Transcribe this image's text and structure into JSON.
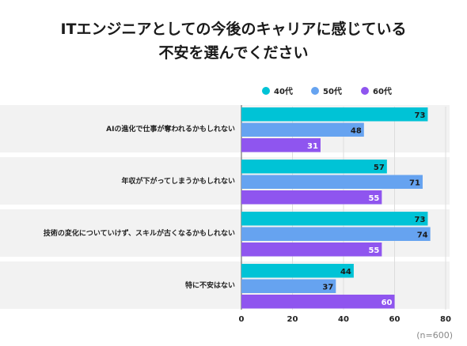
{
  "chart_data": {
    "type": "bar",
    "orientation": "horizontal",
    "title_lines": [
      "ITエンジニアとしての今後のキャリアに感じている",
      "不安を選んでください"
    ],
    "categories": [
      "AIの進化で仕事が奪われるかもしれない",
      "年収が下がってしまうかもしれない",
      "技術の変化についていけず、スキルが古くなるかもしれない",
      "特に不安はない"
    ],
    "series": [
      {
        "name": "40代",
        "color": "#00c3d6",
        "values": [
          73,
          57,
          73,
          44
        ]
      },
      {
        "name": "50代",
        "color": "#66a3f0",
        "values": [
          48,
          71,
          74,
          37
        ]
      },
      {
        "name": "60代",
        "color": "#8f55ef",
        "values": [
          31,
          55,
          55,
          60
        ]
      }
    ],
    "xlim": [
      0,
      80
    ],
    "xticks": [
      0,
      20,
      40,
      60,
      80
    ],
    "grid": true,
    "legend_position": "top-right",
    "value_label_colors": {
      "40代": "#1a1a1a",
      "50代": "#1a1a1a",
      "60代": "#ffffff"
    },
    "band_color": "#f2f2f2"
  },
  "note": "(n=600)"
}
